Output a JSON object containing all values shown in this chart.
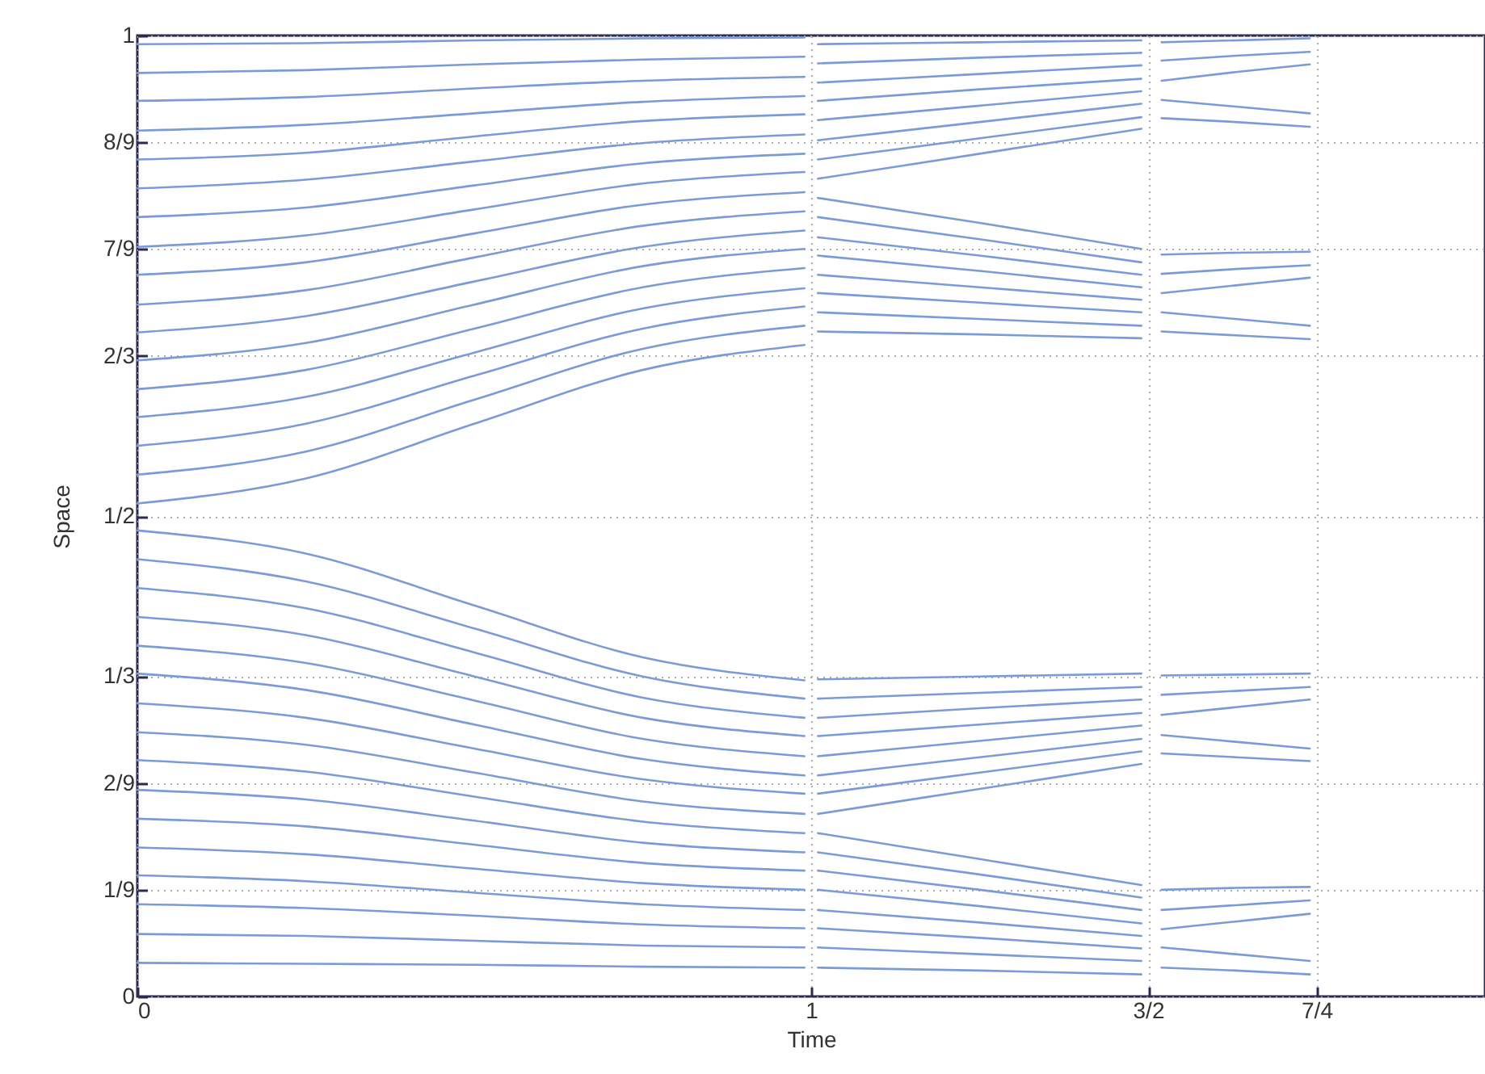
{
  "chart_data": {
    "type": "line",
    "xlabel": "Time",
    "ylabel": "Space",
    "xlim": [
      0,
      2
    ],
    "ylim": [
      0,
      1
    ],
    "xticks": [
      0,
      1,
      {
        "value": 1.5,
        "label": "3/2"
      },
      {
        "value": 1.75,
        "label": "7/4"
      }
    ],
    "yticks": [
      0,
      {
        "value": 0.1111,
        "label": "1/9"
      },
      {
        "value": 0.2222,
        "label": "2/9"
      },
      {
        "value": 0.3333,
        "label": "1/3"
      },
      {
        "value": 0.5,
        "label": "1/2"
      },
      {
        "value": 0.6667,
        "label": "2/3"
      },
      {
        "value": 0.7778,
        "label": "7/9"
      },
      {
        "value": 0.8889,
        "label": "8/9"
      },
      1
    ],
    "grid": true,
    "series": [
      {
        "color": "#7b9bd8",
        "x": [
          0,
          0.25,
          0.5,
          0.75,
          0.99
        ],
        "values": [
          0.991,
          0.992,
          0.995,
          0.997,
          0.998
        ]
      },
      {
        "color": "#7b9bd8",
        "x": [
          0,
          0.25,
          0.5,
          0.75,
          0.99
        ],
        "values": [
          0.961,
          0.964,
          0.97,
          0.975,
          0.978
        ]
      },
      {
        "color": "#7b9bd8",
        "x": [
          0,
          0.25,
          0.5,
          0.75,
          0.99
        ],
        "values": [
          0.932,
          0.936,
          0.945,
          0.953,
          0.957
        ]
      },
      {
        "color": "#7b9bd8",
        "x": [
          0,
          0.25,
          0.5,
          0.75,
          0.99
        ],
        "values": [
          0.901,
          0.907,
          0.919,
          0.931,
          0.937
        ]
      },
      {
        "color": "#7b9bd8",
        "x": [
          0,
          0.25,
          0.5,
          0.75,
          0.99
        ],
        "values": [
          0.871,
          0.878,
          0.895,
          0.911,
          0.918
        ]
      },
      {
        "color": "#7b9bd8",
        "x": [
          0,
          0.25,
          0.5,
          0.75,
          0.99
        ],
        "values": [
          0.841,
          0.85,
          0.869,
          0.888,
          0.897
        ]
      },
      {
        "color": "#7b9bd8",
        "x": [
          0,
          0.25,
          0.5,
          0.75,
          0.99
        ],
        "values": [
          0.811,
          0.821,
          0.844,
          0.867,
          0.877
        ]
      },
      {
        "color": "#7b9bd8",
        "x": [
          0,
          0.25,
          0.5,
          0.75,
          0.99
        ],
        "values": [
          0.78,
          0.792,
          0.819,
          0.846,
          0.858
        ]
      },
      {
        "color": "#7b9bd8",
        "x": [
          0,
          0.25,
          0.5,
          0.75,
          0.99
        ],
        "values": [
          0.751,
          0.764,
          0.794,
          0.824,
          0.837
        ]
      },
      {
        "color": "#7b9bd8",
        "x": [
          0,
          0.25,
          0.5,
          0.75,
          0.99
        ],
        "values": [
          0.72,
          0.735,
          0.769,
          0.802,
          0.817
        ]
      },
      {
        "color": "#7b9bd8",
        "x": [
          0,
          0.25,
          0.5,
          0.75,
          0.99
        ],
        "values": [
          0.691,
          0.708,
          0.744,
          0.78,
          0.797
        ]
      },
      {
        "color": "#7b9bd8",
        "x": [
          0,
          0.25,
          0.5,
          0.75,
          0.99
        ],
        "values": [
          0.662,
          0.68,
          0.72,
          0.76,
          0.778
        ]
      },
      {
        "color": "#7b9bd8",
        "x": [
          0,
          0.25,
          0.5,
          0.75,
          0.99
        ],
        "values": [
          0.632,
          0.652,
          0.695,
          0.738,
          0.758
        ]
      },
      {
        "color": "#7b9bd8",
        "x": [
          0,
          0.25,
          0.5,
          0.75,
          0.99
        ],
        "values": [
          0.603,
          0.624,
          0.67,
          0.716,
          0.737
        ]
      },
      {
        "color": "#7b9bd8",
        "x": [
          0,
          0.25,
          0.5,
          0.75,
          0.99
        ],
        "values": [
          0.573,
          0.596,
          0.646,
          0.695,
          0.718
        ]
      },
      {
        "color": "#7b9bd8",
        "x": [
          0,
          0.25,
          0.5,
          0.75,
          0.99
        ],
        "values": [
          0.543,
          0.567,
          0.621,
          0.674,
          0.698
        ]
      },
      {
        "color": "#7b9bd8",
        "x": [
          0,
          0.25,
          0.5,
          0.75,
          0.99
        ],
        "values": [
          0.513,
          0.539,
          0.596,
          0.652,
          0.678
        ]
      },
      {
        "color": "#7b9bd8",
        "x": [
          0,
          0.25,
          0.5,
          0.75,
          0.99
        ],
        "values": [
          0.485,
          0.461,
          0.407,
          0.353,
          0.329
        ]
      },
      {
        "color": "#7b9bd8",
        "x": [
          0,
          0.25,
          0.5,
          0.75,
          0.99
        ],
        "values": [
          0.455,
          0.432,
          0.383,
          0.333,
          0.31
        ]
      },
      {
        "color": "#7b9bd8",
        "x": [
          0,
          0.25,
          0.5,
          0.75,
          0.99
        ],
        "values": [
          0.425,
          0.404,
          0.358,
          0.311,
          0.29
        ]
      },
      {
        "color": "#7b9bd8",
        "x": [
          0,
          0.25,
          0.5,
          0.75,
          0.99
        ],
        "values": [
          0.395,
          0.376,
          0.333,
          0.29,
          0.271
        ]
      },
      {
        "color": "#7b9bd8",
        "x": [
          0,
          0.25,
          0.5,
          0.75,
          0.99
        ],
        "values": [
          0.365,
          0.347,
          0.308,
          0.268,
          0.25
        ]
      },
      {
        "color": "#7b9bd8",
        "x": [
          0,
          0.25,
          0.5,
          0.75,
          0.99
        ],
        "values": [
          0.336,
          0.319,
          0.283,
          0.247,
          0.23
        ]
      },
      {
        "color": "#7b9bd8",
        "x": [
          0,
          0.25,
          0.5,
          0.75,
          0.99
        ],
        "values": [
          0.305,
          0.29,
          0.258,
          0.226,
          0.211
        ]
      },
      {
        "color": "#7b9bd8",
        "x": [
          0,
          0.25,
          0.5,
          0.75,
          0.99
        ],
        "values": [
          0.275,
          0.262,
          0.233,
          0.203,
          0.19
        ]
      },
      {
        "color": "#7b9bd8",
        "x": [
          0,
          0.25,
          0.5,
          0.75,
          0.99
        ],
        "values": [
          0.246,
          0.234,
          0.208,
          0.182,
          0.17
        ]
      },
      {
        "color": "#7b9bd8",
        "x": [
          0,
          0.25,
          0.5,
          0.75,
          0.99
        ],
        "values": [
          0.215,
          0.205,
          0.183,
          0.16,
          0.15
        ]
      },
      {
        "color": "#7b9bd8",
        "x": [
          0,
          0.25,
          0.5,
          0.75,
          0.99
        ],
        "values": [
          0.185,
          0.177,
          0.158,
          0.139,
          0.131
        ]
      },
      {
        "color": "#7b9bd8",
        "x": [
          0,
          0.25,
          0.5,
          0.75,
          0.99
        ],
        "values": [
          0.155,
          0.148,
          0.133,
          0.118,
          0.111
        ]
      },
      {
        "color": "#7b9bd8",
        "x": [
          0,
          0.25,
          0.5,
          0.75,
          0.99
        ],
        "values": [
          0.126,
          0.12,
          0.108,
          0.096,
          0.09
        ]
      },
      {
        "color": "#7b9bd8",
        "x": [
          0,
          0.25,
          0.5,
          0.75,
          0.99
        ],
        "values": [
          0.096,
          0.092,
          0.084,
          0.075,
          0.071
        ]
      },
      {
        "color": "#7b9bd8",
        "x": [
          0,
          0.25,
          0.5,
          0.75,
          0.99
        ],
        "values": [
          0.065,
          0.063,
          0.058,
          0.053,
          0.051
        ]
      },
      {
        "color": "#7b9bd8",
        "x": [
          0,
          0.25,
          0.5,
          0.75,
          0.99
        ],
        "values": [
          0.035,
          0.034,
          0.033,
          0.031,
          0.03
        ]
      },
      {
        "color": "#7b9bd8",
        "x": [
          1.01,
          1.25,
          1.49
        ],
        "values": [
          0.991,
          0.993,
          0.995
        ]
      },
      {
        "color": "#7b9bd8",
        "x": [
          1.01,
          1.25,
          1.49
        ],
        "values": [
          0.971,
          0.977,
          0.982
        ]
      },
      {
        "color": "#7b9bd8",
        "x": [
          1.01,
          1.25,
          1.49
        ],
        "values": [
          0.951,
          0.96,
          0.969
        ]
      },
      {
        "color": "#7b9bd8",
        "x": [
          1.01,
          1.25,
          1.49
        ],
        "values": [
          0.932,
          0.944,
          0.955
        ]
      },
      {
        "color": "#7b9bd8",
        "x": [
          1.01,
          1.25,
          1.49
        ],
        "values": [
          0.912,
          0.927,
          0.942
        ]
      },
      {
        "color": "#7b9bd8",
        "x": [
          1.01,
          1.25,
          1.49
        ],
        "values": [
          0.891,
          0.91,
          0.929
        ]
      },
      {
        "color": "#7b9bd8",
        "x": [
          1.01,
          1.25,
          1.49
        ],
        "values": [
          0.871,
          0.893,
          0.915
        ]
      },
      {
        "color": "#7b9bd8",
        "x": [
          1.01,
          1.25,
          1.49
        ],
        "values": [
          0.851,
          0.877,
          0.903
        ]
      },
      {
        "color": "#7b9bd8",
        "x": [
          1.01,
          1.25,
          1.49
        ],
        "values": [
          0.831,
          0.805,
          0.778
        ]
      },
      {
        "color": "#7b9bd8",
        "x": [
          1.01,
          1.25,
          1.49
        ],
        "values": [
          0.811,
          0.788,
          0.764
        ]
      },
      {
        "color": "#7b9bd8",
        "x": [
          1.01,
          1.25,
          1.49
        ],
        "values": [
          0.79,
          0.771,
          0.751
        ]
      },
      {
        "color": "#7b9bd8",
        "x": [
          1.01,
          1.25,
          1.49
        ],
        "values": [
          0.771,
          0.755,
          0.738
        ]
      },
      {
        "color": "#7b9bd8",
        "x": [
          1.01,
          1.25,
          1.49
        ],
        "values": [
          0.751,
          0.738,
          0.725
        ]
      },
      {
        "color": "#7b9bd8",
        "x": [
          1.01,
          1.25,
          1.49
        ],
        "values": [
          0.732,
          0.722,
          0.712
        ]
      },
      {
        "color": "#7b9bd8",
        "x": [
          1.01,
          1.25,
          1.49
        ],
        "values": [
          0.712,
          0.705,
          0.698
        ]
      },
      {
        "color": "#7b9bd8",
        "x": [
          1.01,
          1.25,
          1.49
        ],
        "values": [
          0.692,
          0.689,
          0.685
        ]
      },
      {
        "color": "#7b9bd8",
        "x": [
          1.01,
          1.25,
          1.49
        ],
        "values": [
          0.33,
          0.333,
          0.336
        ]
      },
      {
        "color": "#7b9bd8",
        "x": [
          1.01,
          1.25,
          1.49
        ],
        "values": [
          0.31,
          0.316,
          0.322
        ]
      },
      {
        "color": "#7b9bd8",
        "x": [
          1.01,
          1.25,
          1.49
        ],
        "values": [
          0.29,
          0.3,
          0.309
        ]
      },
      {
        "color": "#7b9bd8",
        "x": [
          1.01,
          1.25,
          1.49
        ],
        "values": [
          0.271,
          0.283,
          0.295
        ]
      },
      {
        "color": "#7b9bd8",
        "x": [
          1.01,
          1.25,
          1.49
        ],
        "values": [
          0.25,
          0.266,
          0.282
        ]
      },
      {
        "color": "#7b9bd8",
        "x": [
          1.01,
          1.25,
          1.49
        ],
        "values": [
          0.23,
          0.249,
          0.268
        ]
      },
      {
        "color": "#7b9bd8",
        "x": [
          1.01,
          1.25,
          1.49
        ],
        "values": [
          0.211,
          0.233,
          0.255
        ]
      },
      {
        "color": "#7b9bd8",
        "x": [
          1.01,
          1.25,
          1.49
        ],
        "values": [
          0.19,
          0.216,
          0.242
        ]
      },
      {
        "color": "#7b9bd8",
        "x": [
          1.01,
          1.25,
          1.49
        ],
        "values": [
          0.17,
          0.143,
          0.116
        ]
      },
      {
        "color": "#7b9bd8",
        "x": [
          1.01,
          1.25,
          1.49
        ],
        "values": [
          0.15,
          0.127,
          0.103
        ]
      },
      {
        "color": "#7b9bd8",
        "x": [
          1.01,
          1.25,
          1.49
        ],
        "values": [
          0.131,
          0.111,
          0.09
        ]
      },
      {
        "color": "#7b9bd8",
        "x": [
          1.01,
          1.25,
          1.49
        ],
        "values": [
          0.111,
          0.094,
          0.076
        ]
      },
      {
        "color": "#7b9bd8",
        "x": [
          1.01,
          1.25,
          1.49
        ],
        "values": [
          0.09,
          0.077,
          0.063
        ]
      },
      {
        "color": "#7b9bd8",
        "x": [
          1.01,
          1.25,
          1.49
        ],
        "values": [
          0.071,
          0.061,
          0.05
        ]
      },
      {
        "color": "#7b9bd8",
        "x": [
          1.01,
          1.25,
          1.49
        ],
        "values": [
          0.051,
          0.044,
          0.037
        ]
      },
      {
        "color": "#7b9bd8",
        "x": [
          1.01,
          1.25,
          1.49
        ],
        "values": [
          0.03,
          0.027,
          0.023
        ]
      },
      {
        "color": "#7b9bd8",
        "x": [
          1.52,
          1.63,
          1.74
        ],
        "values": [
          0.993,
          0.995,
          0.997
        ]
      },
      {
        "color": "#7b9bd8",
        "x": [
          1.52,
          1.63,
          1.74
        ],
        "values": [
          0.974,
          0.979,
          0.983
        ]
      },
      {
        "color": "#7b9bd8",
        "x": [
          1.52,
          1.63,
          1.74
        ],
        "values": [
          0.953,
          0.962,
          0.97
        ]
      },
      {
        "color": "#7b9bd8",
        "x": [
          1.52,
          1.63,
          1.74
        ],
        "values": [
          0.933,
          0.926,
          0.919
        ]
      },
      {
        "color": "#7b9bd8",
        "x": [
          1.52,
          1.63,
          1.74
        ],
        "values": [
          0.914,
          0.91,
          0.905
        ]
      },
      {
        "color": "#7b9bd8",
        "x": [
          1.52,
          1.63,
          1.74
        ],
        "values": [
          0.772,
          0.774,
          0.775
        ]
      },
      {
        "color": "#7b9bd8",
        "x": [
          1.52,
          1.63,
          1.74
        ],
        "values": [
          0.752,
          0.757,
          0.761
        ]
      },
      {
        "color": "#7b9bd8",
        "x": [
          1.52,
          1.63,
          1.74
        ],
        "values": [
          0.732,
          0.74,
          0.748
        ]
      },
      {
        "color": "#7b9bd8",
        "x": [
          1.52,
          1.63,
          1.74
        ],
        "values": [
          0.712,
          0.705,
          0.698
        ]
      },
      {
        "color": "#7b9bd8",
        "x": [
          1.52,
          1.63,
          1.74
        ],
        "values": [
          0.692,
          0.688,
          0.684
        ]
      },
      {
        "color": "#7b9bd8",
        "x": [
          1.52,
          1.63,
          1.74
        ],
        "values": [
          0.334,
          0.335,
          0.336
        ]
      },
      {
        "color": "#7b9bd8",
        "x": [
          1.52,
          1.63,
          1.74
        ],
        "values": [
          0.314,
          0.318,
          0.322
        ]
      },
      {
        "color": "#7b9bd8",
        "x": [
          1.52,
          1.63,
          1.74
        ],
        "values": [
          0.293,
          0.301,
          0.309
        ]
      },
      {
        "color": "#7b9bd8",
        "x": [
          1.52,
          1.63,
          1.74
        ],
        "values": [
          0.272,
          0.265,
          0.258
        ]
      },
      {
        "color": "#7b9bd8",
        "x": [
          1.52,
          1.63,
          1.74
        ],
        "values": [
          0.253,
          0.249,
          0.245
        ]
      },
      {
        "color": "#7b9bd8",
        "x": [
          1.52,
          1.63,
          1.74
        ],
        "values": [
          0.111,
          0.113,
          0.114
        ]
      },
      {
        "color": "#7b9bd8",
        "x": [
          1.52,
          1.63,
          1.74
        ],
        "values": [
          0.09,
          0.095,
          0.1
        ]
      },
      {
        "color": "#7b9bd8",
        "x": [
          1.52,
          1.63,
          1.74
        ],
        "values": [
          0.07,
          0.078,
          0.086
        ]
      },
      {
        "color": "#7b9bd8",
        "x": [
          1.52,
          1.63,
          1.74
        ],
        "values": [
          0.051,
          0.044,
          0.037
        ]
      },
      {
        "color": "#7b9bd8",
        "x": [
          1.52,
          1.63,
          1.74
        ],
        "values": [
          0.03,
          0.027,
          0.023
        ]
      }
    ]
  }
}
